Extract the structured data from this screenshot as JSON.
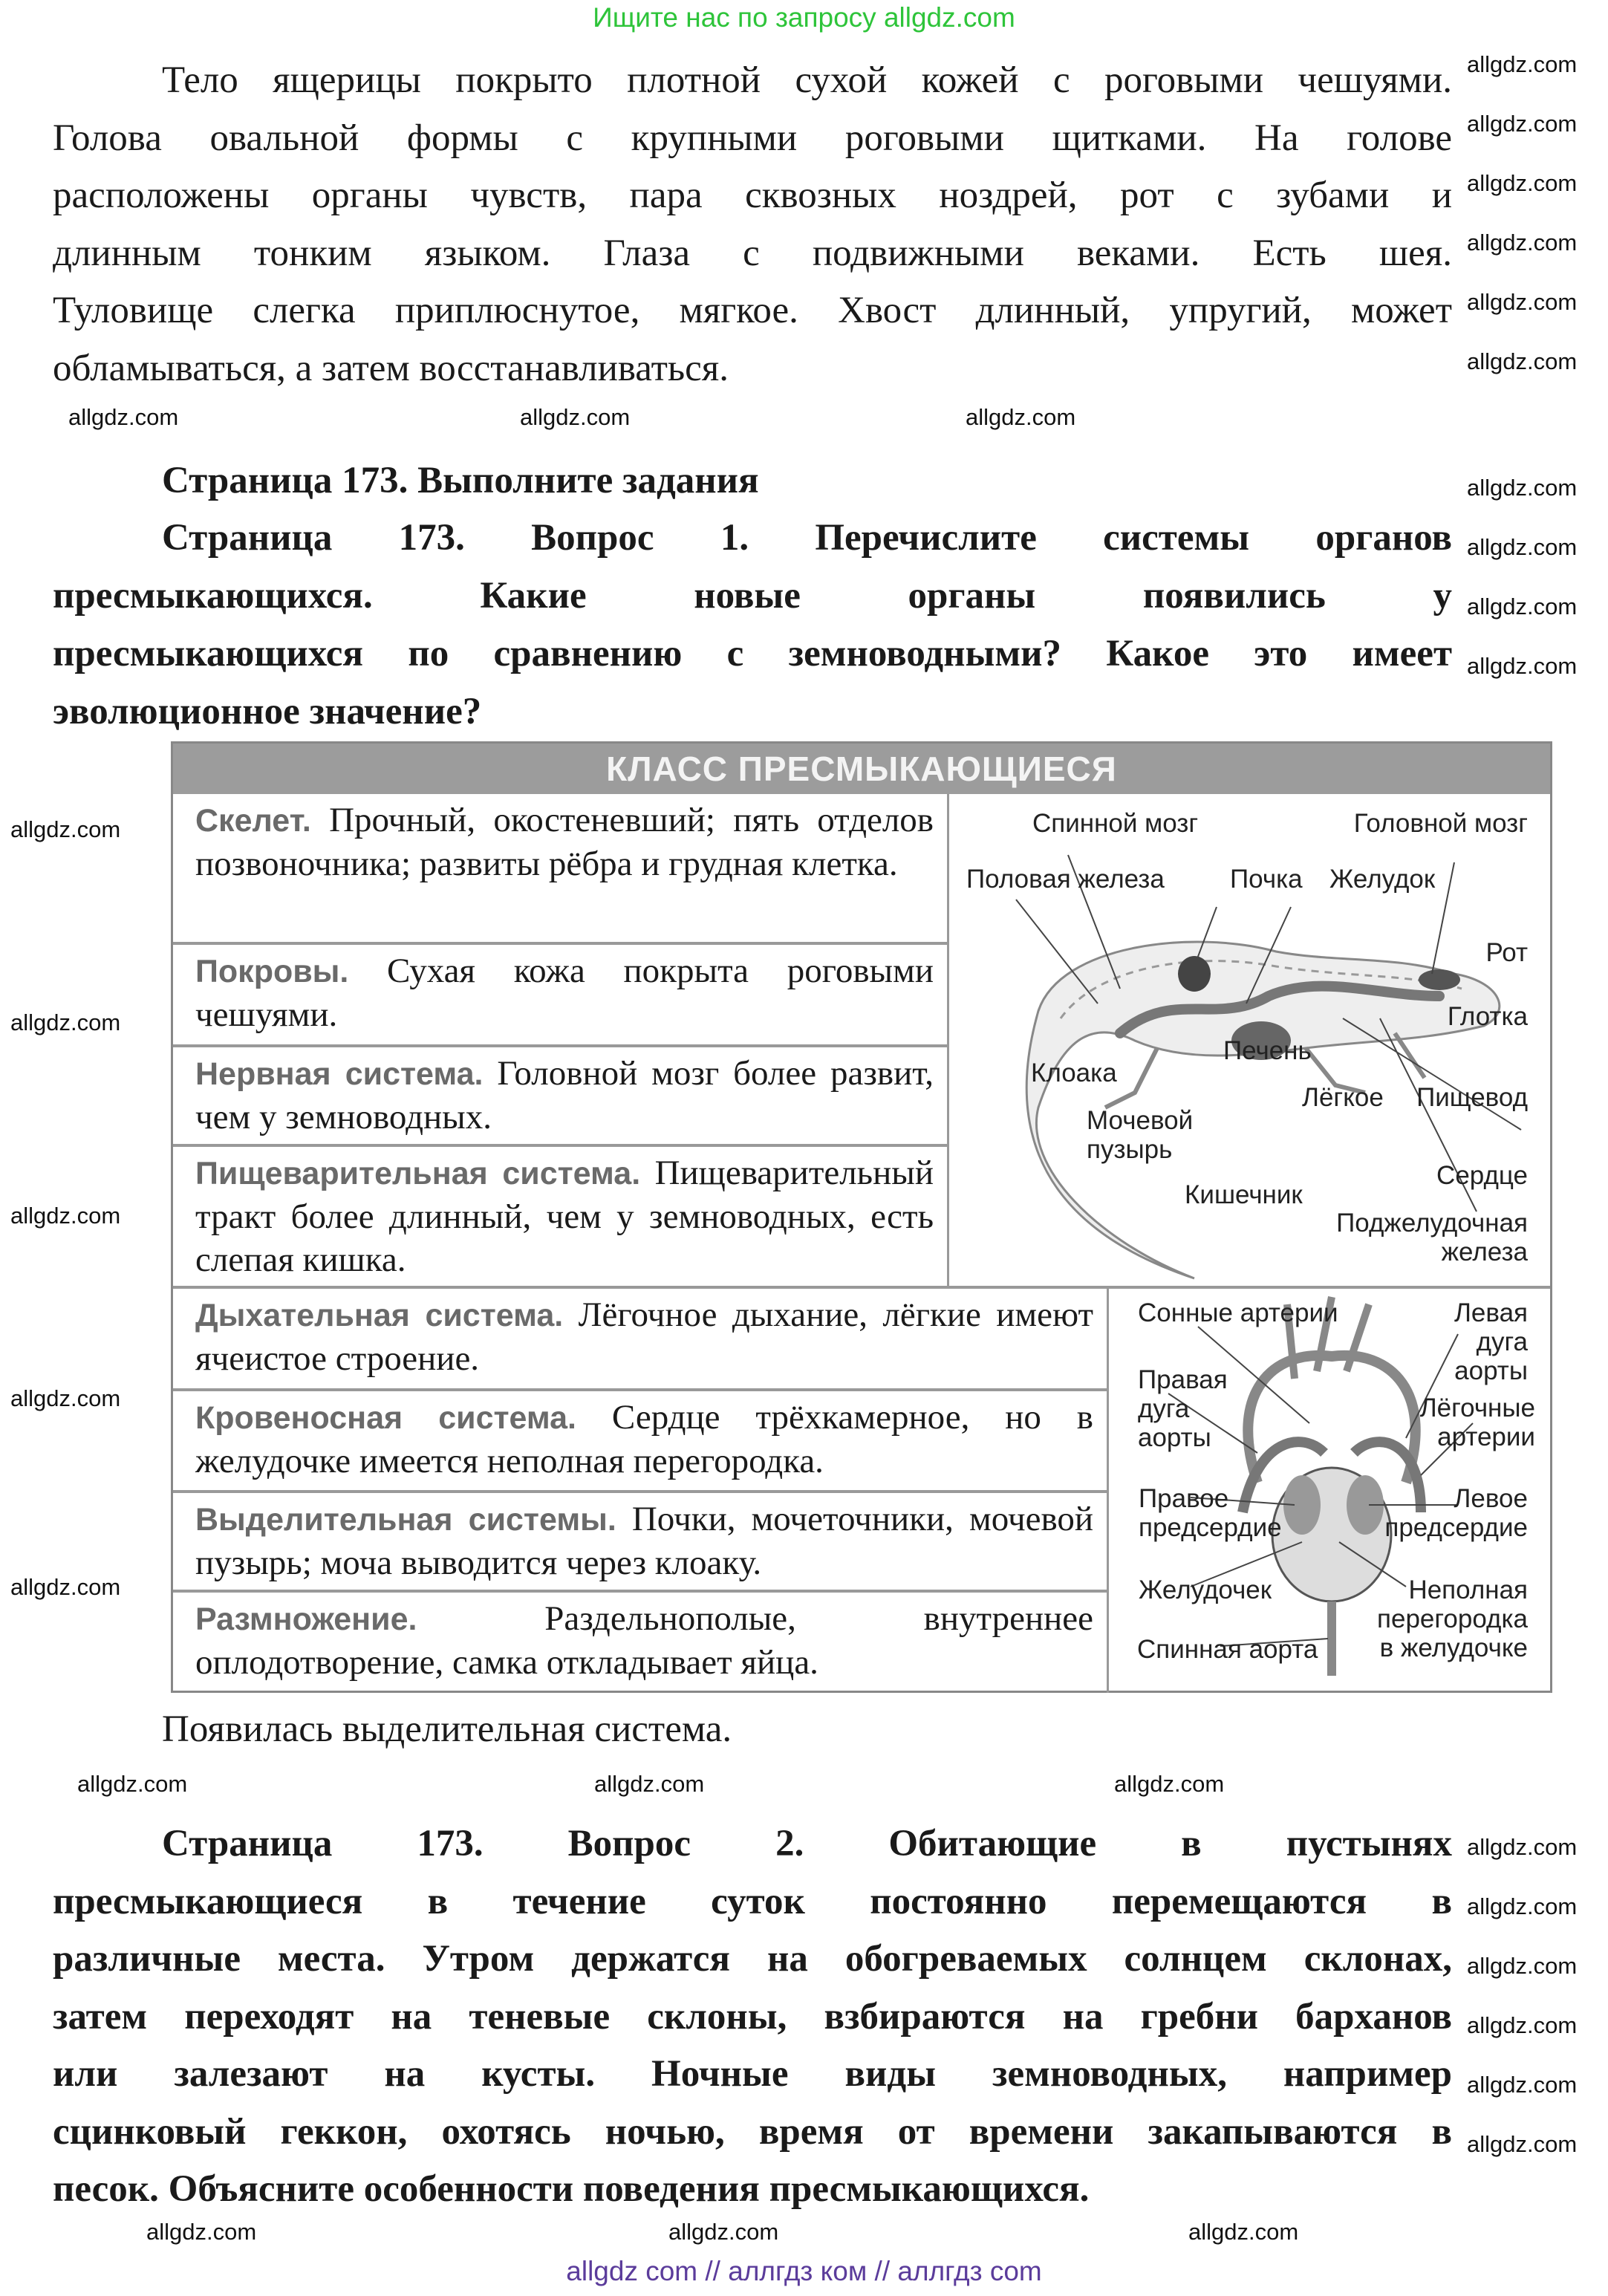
{
  "banner": "Ищите нас по запросу allgdz.com",
  "paragraph1": [
    "Тело ящерицы покрыто плотной сухой кожей с роговыми чешуями.",
    "Голова овальной формы с крупными роговыми щитками. На голове",
    "расположены органы чувств, пара сквозных ноздрей, рот с зубами и",
    "длинным тонким языком. Глаза с подвижными веками. Есть шея.",
    "Туловище слегка приплюснутое, мягкое. Хвост длинный, упругий, может",
    "обламываться, а затем восстанавливаться."
  ],
  "section_heading": "Страница 173. Выполните задания",
  "question1": [
    "Страница 173. Вопрос 1. Перечислите системы органов",
    "пресмыкающихся. Какие новые органы появились у",
    "пресмыкающихся по сравнению с земноводными? Какое это имеет",
    "эволюционное значение?"
  ],
  "table": {
    "title": "КЛАСС ПРЕСМЫКАЮЩИЕСЯ",
    "rows": [
      {
        "label": "Скелет.",
        "text": " Прочный, окостеневший; пять отделов позвоночника; развиты рёбра и грудная клетка."
      },
      {
        "label": "Покровы.",
        "text": " Сухая кожа покрыта роговыми чешуями."
      },
      {
        "label": "Нервная система.",
        "text": " Головной мозг более развит, чем у земноводных."
      },
      {
        "label": "Пищеварительная система.",
        "text": " Пищеварительный тракт более длинный, чем у земноводных, есть слепая кишка."
      },
      {
        "label": "Дыхательная система.",
        "text": " Лёгочное дыхание, лёгкие имеют ячеистое строение."
      },
      {
        "label": "Кровеносная система.",
        "text": " Сердце трёхкамерное, но в желудочке имеется неполная перегородка."
      },
      {
        "label": "Выделительная системы.",
        "text": " Почки, мочеточники, мочевой пузырь; моча выводится через клоаку."
      },
      {
        "label": "Размножение.",
        "text": " Раздельнополые, внутреннее оплодотворение, самка откладывает яйца."
      }
    ],
    "lizard_labels": [
      "Спинной мозг",
      "Головной мозг",
      "Половая железа",
      "Почка",
      "Желудок",
      "Рот",
      "Глотка",
      "Печень",
      "Клоака",
      "Лёгкое",
      "Пищевод",
      "Мочевой пузырь",
      "Сердце",
      "Кишечник",
      "Поджелудочная железа"
    ],
    "heart_labels": [
      "Сонные артерии",
      "Левая дуга аорты",
      "Правая дуга аорты",
      "Лёгочные артерии",
      "Правое предсердие",
      "Левое предсердие",
      "Желудочек",
      "Неполная перегородка в желудочке",
      "Спинная аорта"
    ]
  },
  "answer1": "Появилась выделительная система.",
  "question2": [
    "Страница 173. Вопрос 2. Обитающие в пустынях",
    "пресмыкающиеся в течение суток постоянно перемещаются в",
    "различные места. Утром держатся на обогреваемых солнцем склонах,",
    "затем переходят на теневые склоны, взбираются на гребни барханов",
    "или залезают на кусты. Ночные виды земноводных, например",
    "сцинковый геккон, охотясь ночью, время от времени закапываются в",
    "песок. Объясните особенности поведения пресмыкающихся."
  ],
  "watermark": "allgdz.com",
  "footer": "allgdz com  //  аллгдз ком  //  аллгдз com",
  "colors": {
    "banner": "#2ec43a",
    "footer": "#5b3c9b",
    "table_header": "#9c9c9c"
  }
}
